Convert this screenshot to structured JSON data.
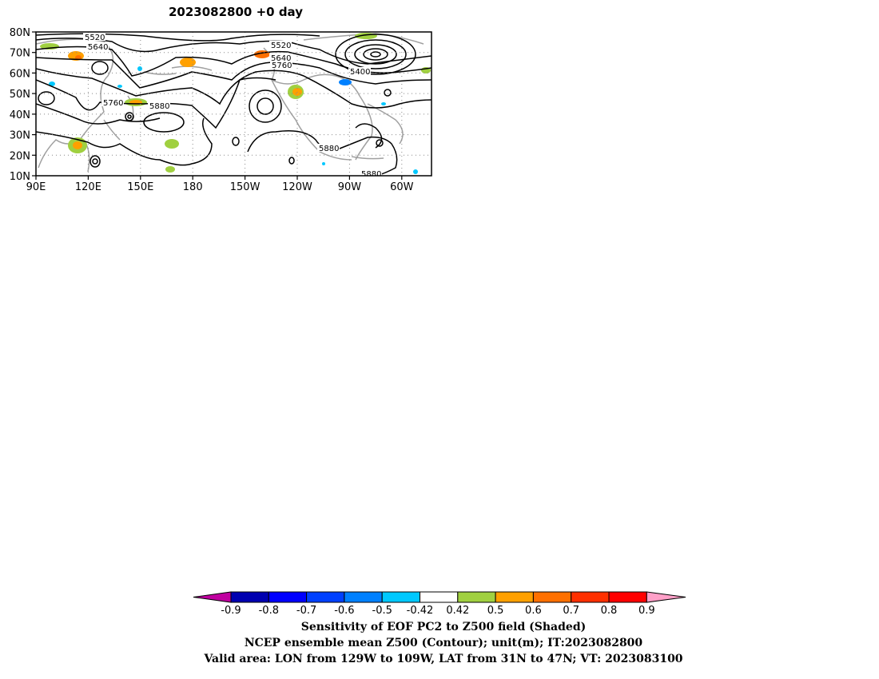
{
  "title": "2023082800  +0 day",
  "map": {
    "lat_labels": [
      "80N",
      "70N",
      "60N",
      "50N",
      "40N",
      "30N",
      "20N",
      "10N"
    ],
    "lon_labels": [
      "90E",
      "120E",
      "150E",
      "180",
      "150W",
      "120W",
      "90W",
      "60W"
    ],
    "contour_labels": [
      "5520",
      "5640",
      "5760",
      "5880",
      "5520",
      "5640",
      "5760",
      "5400",
      "5880",
      "5880"
    ],
    "contour_color": "#000000",
    "coast_color": "#a0a0a0"
  },
  "colorbar": {
    "tick_labels": [
      "-0.9",
      "-0.8",
      "-0.7",
      "-0.6",
      "-0.5",
      "-0.42",
      "0.42",
      "0.5",
      "0.6",
      "0.7",
      "0.8",
      "0.9"
    ],
    "colors": [
      "#c000a0",
      "#0000b0",
      "#0000ff",
      "#0040ff",
      "#0080ff",
      "#00c8ff",
      "#ffffff",
      "#a0d040",
      "#ffa000",
      "#ff7000",
      "#ff3000",
      "#ff0000",
      "#ffa0c8"
    ]
  },
  "captions": {
    "line1": "Sensitivity of EOF PC2 to Z500 field (Shaded)",
    "line2": "NCEP ensemble mean Z500 (Contour); unit(m); IT:2023082800",
    "line3": "Valid area: LON from 129W to 109W, LAT from 31N to 47N; VT: 2023083100"
  }
}
